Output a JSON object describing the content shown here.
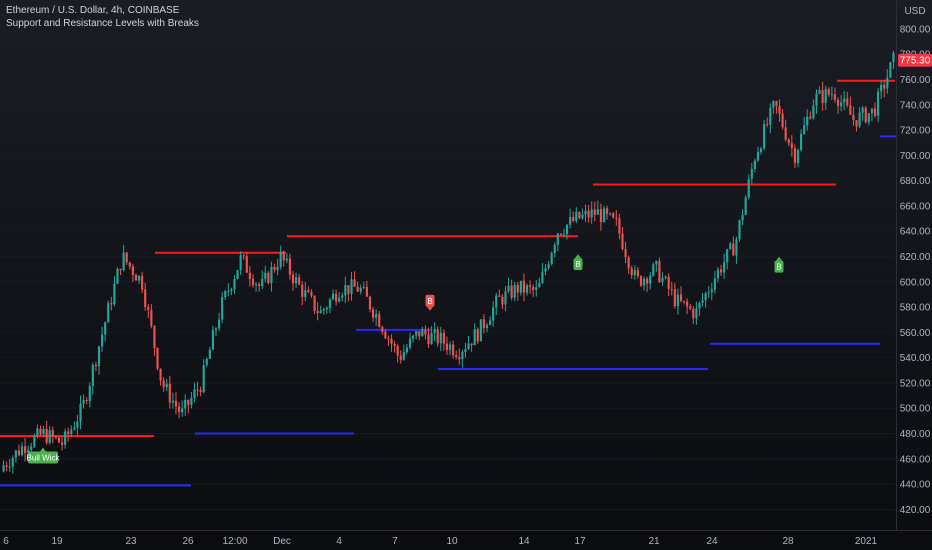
{
  "header": {
    "symbol_line": "Ethereum / U.S. Dollar, 4h, COINBASE",
    "indicator_line": "Support and Resistance Levels with Breaks"
  },
  "axis": {
    "currency": "USD",
    "last_price": "775.30",
    "last_price_color": "#f23645"
  },
  "colors": {
    "up": "#26a69a",
    "down": "#ef5350",
    "resistance": "#ff1a1a",
    "support": "#2929ff",
    "bull_label": "#4caf50",
    "bear_label": "#ef5350"
  },
  "labels": {
    "bull_wick": "Bull Wick",
    "break_bull": "B",
    "break_bear": "B"
  },
  "chart_data": {
    "type": "candlestick",
    "y_range": [
      410,
      815
    ],
    "y_ticks": [
      420,
      440,
      460,
      480,
      500,
      520,
      540,
      560,
      580,
      600,
      620,
      640,
      660,
      680,
      700,
      720,
      740,
      760,
      780,
      800
    ],
    "x_tick_labels": [
      "6",
      "19",
      "23",
      "26",
      "12:00",
      "Dec",
      "4",
      "7",
      "10",
      "14",
      "17",
      "21",
      "24",
      "28",
      "2021"
    ],
    "price_path": [
      [
        450,
        455
      ],
      [
        465,
        470
      ],
      [
        478,
        480
      ],
      [
        475,
        472
      ],
      [
        482,
        500
      ],
      [
        520,
        560
      ],
      [
        590,
        620
      ],
      [
        610,
        600
      ],
      [
        590,
        520
      ],
      [
        505,
        495
      ],
      [
        505,
        520
      ],
      [
        545,
        580
      ],
      [
        600,
        618
      ],
      [
        605,
        595
      ],
      [
        600,
        620
      ],
      [
        600,
        595
      ],
      [
        590,
        575
      ],
      [
        590,
        595
      ],
      [
        600,
        595
      ],
      [
        590,
        570
      ],
      [
        575,
        540
      ],
      [
        555,
        560
      ],
      [
        560,
        555
      ],
      [
        550,
        545
      ],
      [
        548,
        560
      ],
      [
        575,
        585
      ],
      [
        590,
        595
      ],
      [
        590,
        592
      ],
      [
        600,
        640
      ],
      [
        665,
        650
      ],
      [
        645,
        655
      ],
      [
        652,
        645
      ],
      [
        630,
        600
      ],
      [
        605,
        610
      ],
      [
        600,
        585
      ],
      [
        590,
        575
      ],
      [
        590,
        605
      ],
      [
        620,
        630
      ],
      [
        640,
        700
      ],
      [
        720,
        740
      ],
      [
        720,
        700
      ],
      [
        730,
        745
      ],
      [
        745,
        750
      ],
      [
        738,
        728
      ],
      [
        725,
        735
      ],
      [
        745,
        775
      ]
    ],
    "resistance_levels": [
      {
        "from": 0,
        "to": 154,
        "value": 478
      },
      {
        "from": 155,
        "to": 286,
        "value": 623
      },
      {
        "from": 287,
        "to": 578,
        "value": 636
      },
      {
        "from": 593,
        "to": 836,
        "value": 677
      },
      {
        "from": 837,
        "to": 895,
        "value": 759
      }
    ],
    "support_levels": [
      {
        "from": 0,
        "to": 191,
        "value": 439
      },
      {
        "from": 195,
        "to": 354,
        "value": 480
      },
      {
        "from": 356,
        "to": 432,
        "value": 562
      },
      {
        "from": 438,
        "to": 708,
        "value": 531
      },
      {
        "from": 710,
        "to": 880,
        "value": 551
      },
      {
        "from": 880,
        "to": 897,
        "value": 715
      }
    ],
    "markers": [
      {
        "type": "bull_wick",
        "x": 43,
        "y": 461
      },
      {
        "type": "break_bull",
        "x": 578,
        "y": 614
      },
      {
        "type": "break_bear",
        "x": 430,
        "y": 585
      },
      {
        "type": "break_bull",
        "x": 779,
        "y": 612
      }
    ]
  }
}
